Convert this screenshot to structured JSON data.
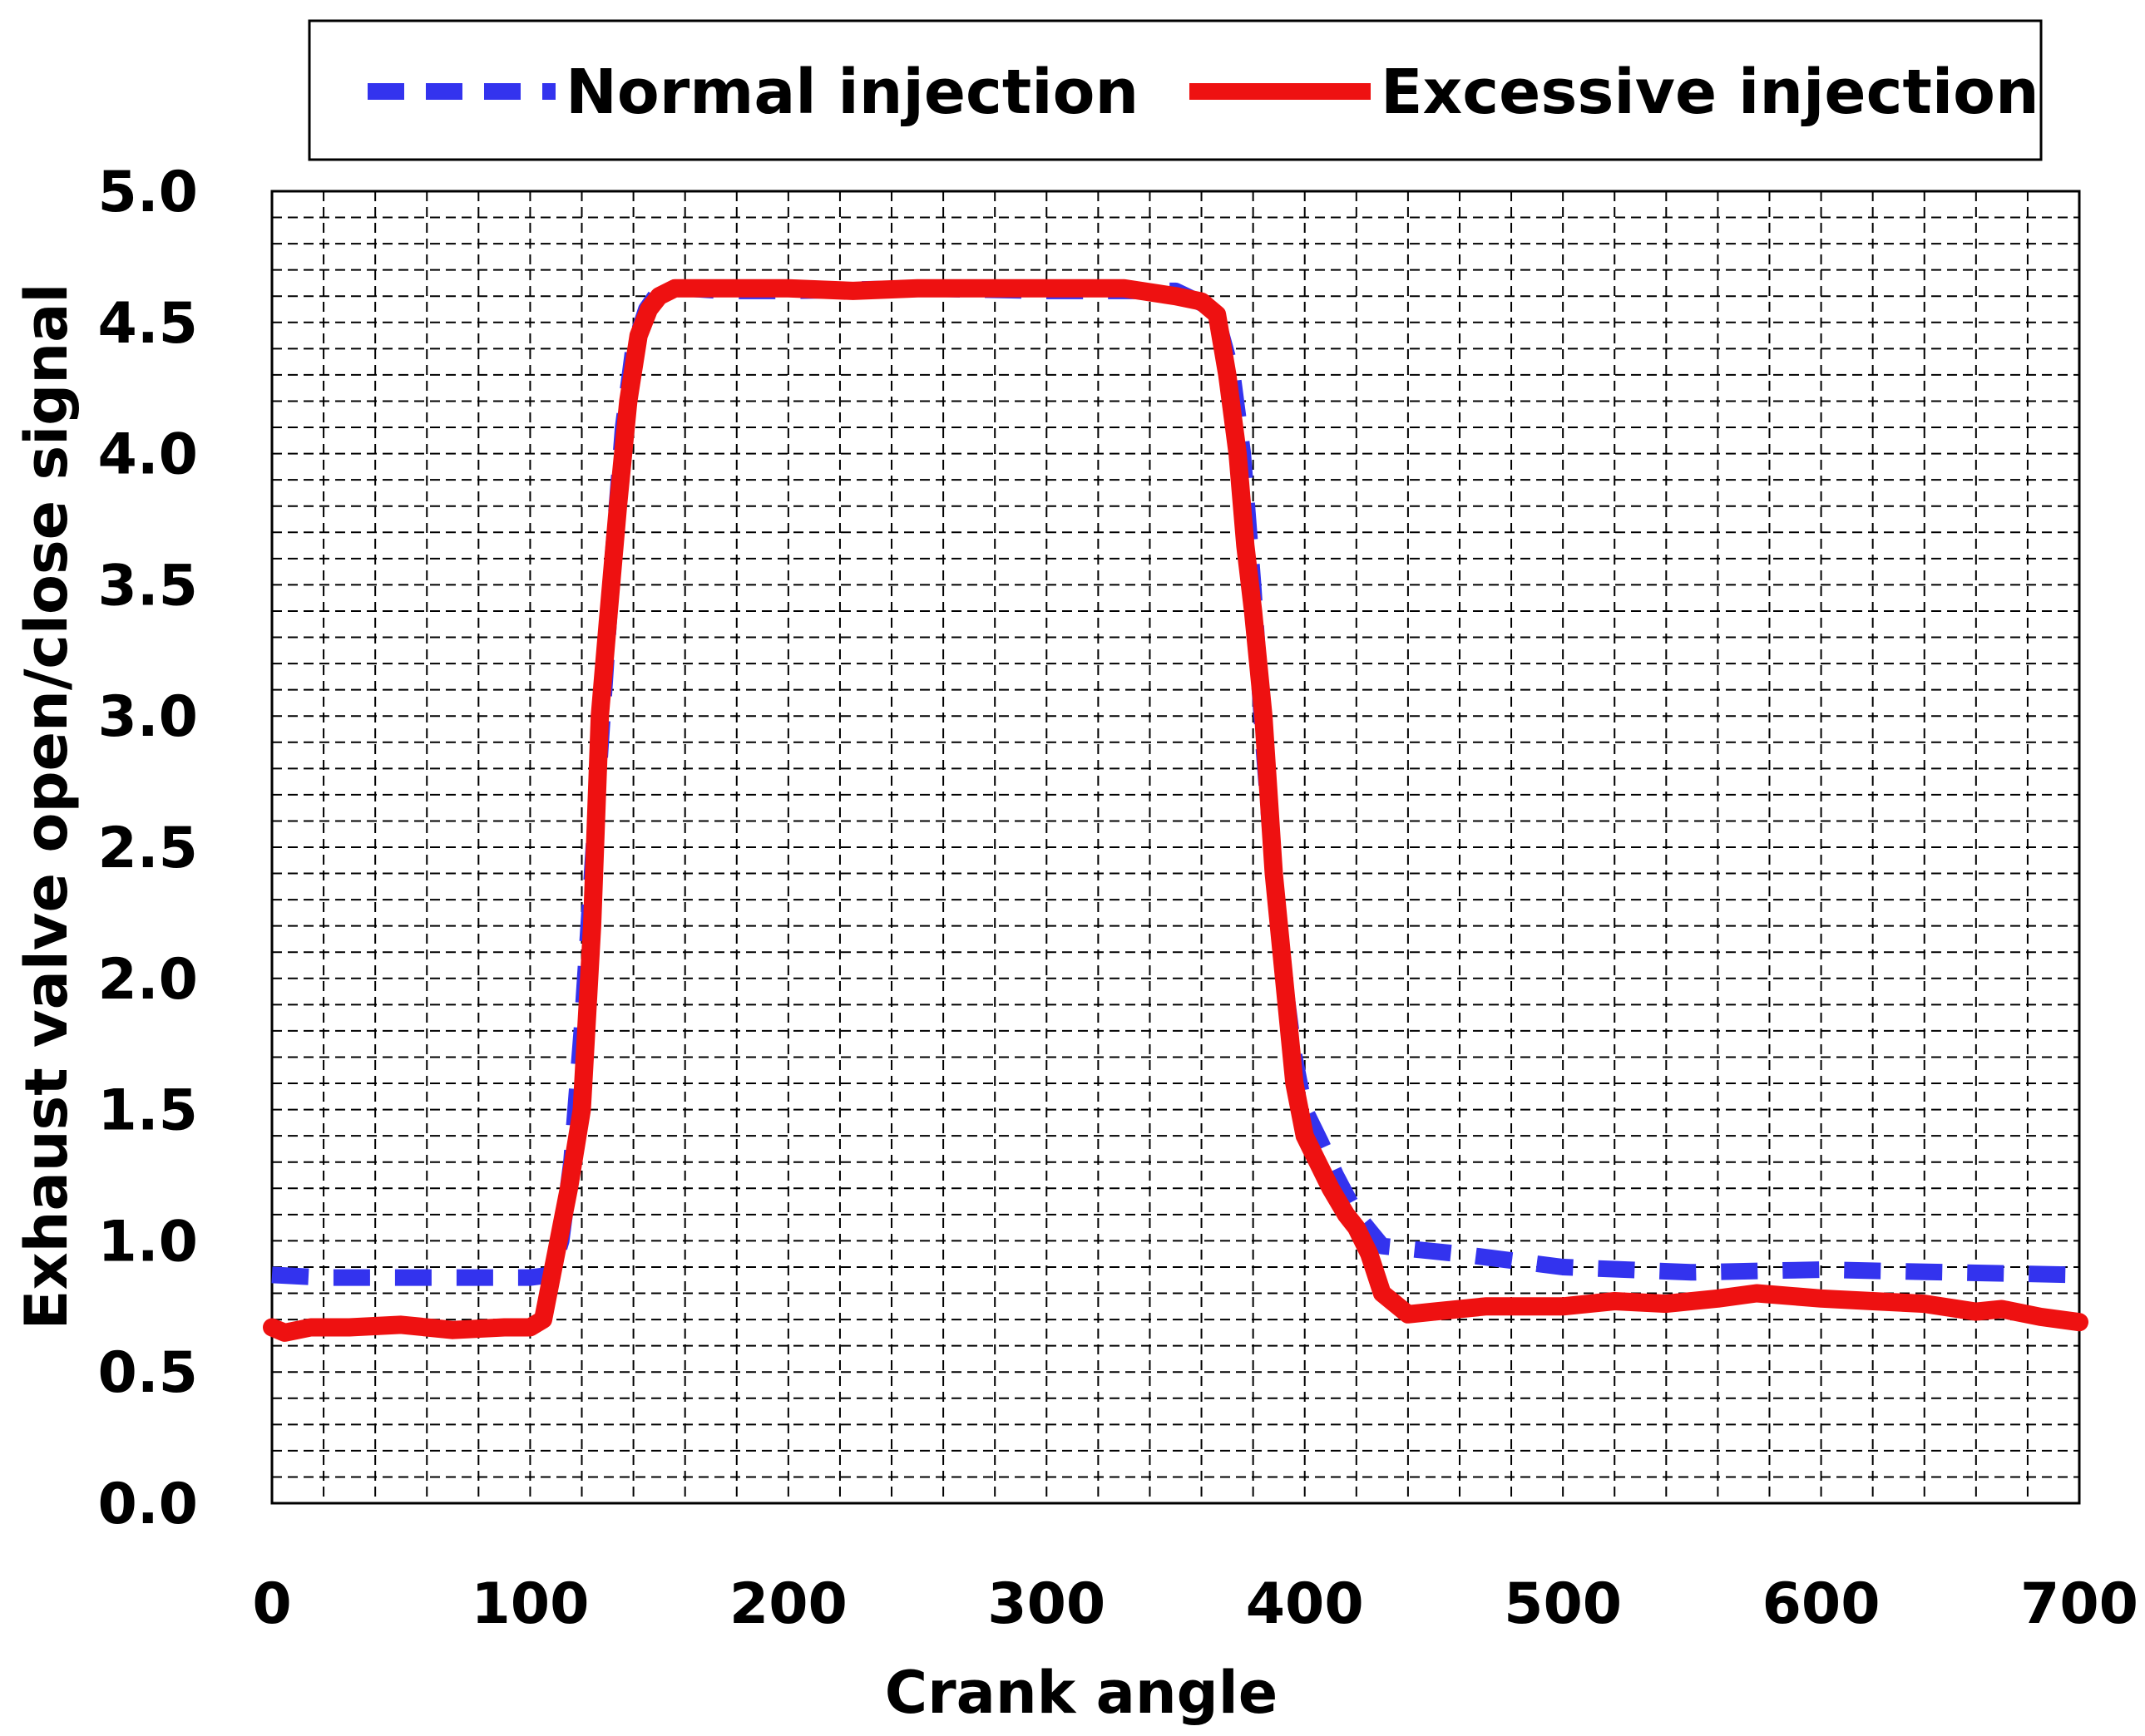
{
  "chart_data": {
    "type": "line",
    "title": "",
    "xlabel": "Crank angle",
    "ylabel": "Exhaust valve open/close signal",
    "xlim": [
      0,
      700
    ],
    "ylim": [
      0,
      5
    ],
    "x_ticks": [
      0,
      100,
      200,
      300,
      400,
      500,
      600,
      700
    ],
    "y_ticks": [
      0.0,
      0.5,
      1.0,
      1.5,
      2.0,
      2.5,
      3.0,
      3.5,
      4.0,
      4.5,
      5.0
    ],
    "x_tick_labels": [
      "0",
      "100",
      "200",
      "300",
      "400",
      "500",
      "600",
      "700"
    ],
    "y_tick_labels": [
      "0.0",
      "0.5",
      "1.0",
      "1.5",
      "2.0",
      "2.5",
      "3.0",
      "3.5",
      "4.0",
      "4.5",
      "5.0"
    ],
    "grid": true,
    "legend_position": "top",
    "series": [
      {
        "name": "Normal injection",
        "color": "#3333ee",
        "style": "dashed",
        "x": [
          0,
          20,
          50,
          80,
          100,
          108,
          112,
          116,
          120,
          124,
          128,
          132,
          136,
          140,
          145,
          150,
          160,
          175,
          200,
          250,
          300,
          350,
          365,
          372,
          376,
          380,
          384,
          388,
          392,
          396,
          400,
          406,
          412,
          420,
          430,
          440,
          460,
          500,
          550,
          600,
          650,
          700
        ],
        "y": [
          0.87,
          0.86,
          0.86,
          0.86,
          0.86,
          0.87,
          1.0,
          1.3,
          1.8,
          2.4,
          3.0,
          3.6,
          4.1,
          4.4,
          4.55,
          4.62,
          4.63,
          4.62,
          4.62,
          4.63,
          4.62,
          4.62,
          4.55,
          4.3,
          4.0,
          3.5,
          2.9,
          2.4,
          2.0,
          1.7,
          1.5,
          1.38,
          1.25,
          1.1,
          0.98,
          0.97,
          0.95,
          0.9,
          0.88,
          0.89,
          0.88,
          0.87
        ]
      },
      {
        "name": "Excessive injection",
        "color": "#ee1111",
        "style": "solid",
        "x": [
          0,
          5,
          15,
          30,
          50,
          70,
          90,
          100,
          105,
          110,
          115,
          120,
          124,
          127,
          130,
          134,
          138,
          142,
          146,
          150,
          156,
          163,
          170,
          185,
          200,
          225,
          250,
          275,
          300,
          330,
          350,
          360,
          366,
          370,
          374,
          377,
          380,
          384,
          388,
          392,
          396,
          400,
          405,
          410,
          416,
          420,
          425,
          430,
          440,
          450,
          470,
          500,
          520,
          540,
          560,
          575,
          600,
          620,
          640,
          660,
          670,
          685,
          700
        ],
        "y": [
          0.67,
          0.65,
          0.67,
          0.67,
          0.68,
          0.66,
          0.67,
          0.67,
          0.7,
          0.95,
          1.2,
          1.5,
          2.2,
          3.0,
          3.35,
          3.8,
          4.2,
          4.45,
          4.55,
          4.6,
          4.63,
          4.63,
          4.63,
          4.63,
          4.63,
          4.62,
          4.63,
          4.63,
          4.63,
          4.63,
          4.6,
          4.58,
          4.53,
          4.3,
          4.0,
          3.65,
          3.4,
          3.0,
          2.4,
          2.0,
          1.6,
          1.4,
          1.3,
          1.2,
          1.1,
          1.05,
          0.95,
          0.8,
          0.72,
          0.73,
          0.75,
          0.75,
          0.77,
          0.76,
          0.78,
          0.8,
          0.78,
          0.77,
          0.76,
          0.73,
          0.74,
          0.71,
          0.69
        ]
      }
    ]
  }
}
